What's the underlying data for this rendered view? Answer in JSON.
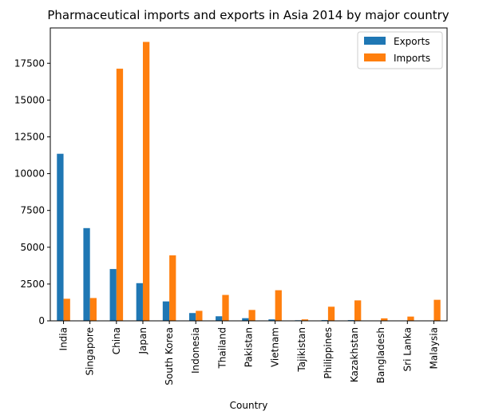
{
  "chart_data": {
    "type": "bar",
    "title": "Pharmaceutical imports and exports in Asia 2014 by major country",
    "xlabel": "Country",
    "ylabel": "",
    "ylim": [
      0,
      19900
    ],
    "yticks": [
      0,
      2500,
      5000,
      7500,
      10000,
      12500,
      15000,
      17500
    ],
    "ytick_labels": [
      "0",
      "2500",
      "5000",
      "7500",
      "10000",
      "12500",
      "15000",
      "17500"
    ],
    "categories": [
      "India",
      "Singapore",
      "China",
      "Japan",
      "South Korea",
      "Indonesia",
      "Thailand",
      "Pakistan",
      "Vietnam",
      "Tajikistan",
      "Philippines",
      "Kazakhstan",
      "Bangladesh",
      "Sri Lanka",
      "Malaysia"
    ],
    "series": [
      {
        "name": "Exports",
        "color": "#1f77b4",
        "values": [
          11350,
          6300,
          3520,
          2560,
          1320,
          530,
          310,
          180,
          100,
          40,
          50,
          50,
          10,
          10,
          10
        ]
      },
      {
        "name": "Imports",
        "color": "#ff7f0e",
        "values": [
          1500,
          1550,
          17130,
          18950,
          4450,
          680,
          1760,
          740,
          2080,
          100,
          960,
          1390,
          170,
          290,
          1430
        ]
      }
    ],
    "grid": false,
    "legend_position": "top-right"
  }
}
